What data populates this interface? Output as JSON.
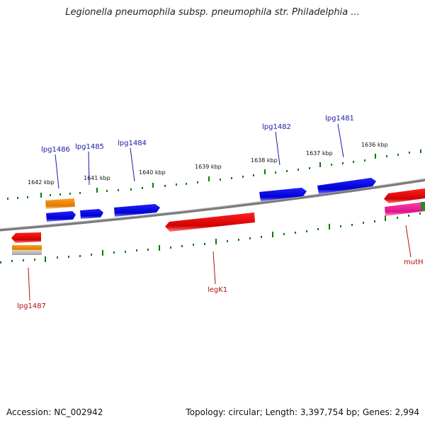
{
  "title": "Legionella pneumophila subsp. pneumophila str. Philadelphia ...",
  "footer": {
    "accession": "Accession: NC_002942",
    "summary": "Topology: circular; Length: 3,397,754 bp; Genes: 2,994"
  },
  "colors": {
    "forward_gene": "#0a0ae0",
    "reverse_gene": "#e00000",
    "orange_gene": "#f08a00",
    "magenta_gene": "#e8208c",
    "gray_gene": "#b0b0b0",
    "ticks": "#0a7a0a",
    "backbone": "#808080",
    "label_blue": "#1a1aa6",
    "label_red": "#b01010"
  },
  "kbp_labels": [
    "1642 kbp",
    "1641 kbp",
    "1640 kbp",
    "1639 kbp",
    "1638 kbp",
    "1637 kbp",
    "1636 kbp"
  ],
  "gene_labels_top": [
    "lpg1486",
    "lpg1485",
    "lpg1484",
    "lpg1482",
    "lpg1481"
  ],
  "gene_labels_bottom": [
    "lpg1487",
    "legK1",
    "mutH"
  ]
}
